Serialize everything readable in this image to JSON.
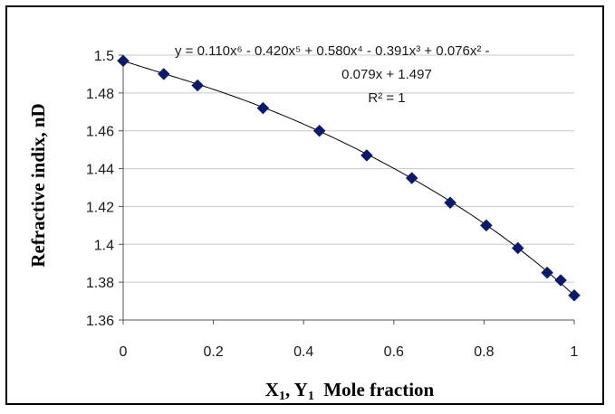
{
  "chart_data": {
    "type": "scatter",
    "xlabel_parts": {
      "x": "X",
      "x_sub": "1",
      "sep": ", ",
      "y": "Y",
      "y_sub": "1",
      "rest": "  Mole fraction"
    },
    "ylabel": "Refractive indix, nD",
    "xlim": [
      0,
      1
    ],
    "ylim": [
      1.36,
      1.5
    ],
    "xticks": [
      "0",
      "0.2",
      "0.4",
      "0.6",
      "0.8",
      "1"
    ],
    "yticks": [
      "1.36",
      "1.38",
      "1.4",
      "1.42",
      "1.44",
      "1.46",
      "1.48",
      "1.5"
    ],
    "grid": "horizontal",
    "series": [
      {
        "marker": "diamond",
        "color": "#0d1a6b",
        "x": [
          0,
          0.09,
          0.165,
          0.31,
          0.435,
          0.54,
          0.64,
          0.725,
          0.805,
          0.875,
          0.94,
          0.97,
          1.0
        ],
        "y": [
          1.497,
          1.49,
          1.484,
          1.472,
          1.46,
          1.447,
          1.435,
          1.422,
          1.41,
          1.398,
          1.385,
          1.381,
          1.373
        ]
      }
    ],
    "trendline": {
      "type": "polynomial",
      "coefficients_high_to_low": [
        0.11,
        -0.42,
        0.58,
        -0.391,
        0.076,
        -0.079,
        1.497
      ],
      "color": "#000000"
    },
    "equation_lines": [
      "y = 0.110x⁶ - 0.420x⁵ + 0.580x⁴ - 0.391x³ + 0.076x² -",
      "0.079x + 1.497",
      "R² = 1"
    ]
  }
}
